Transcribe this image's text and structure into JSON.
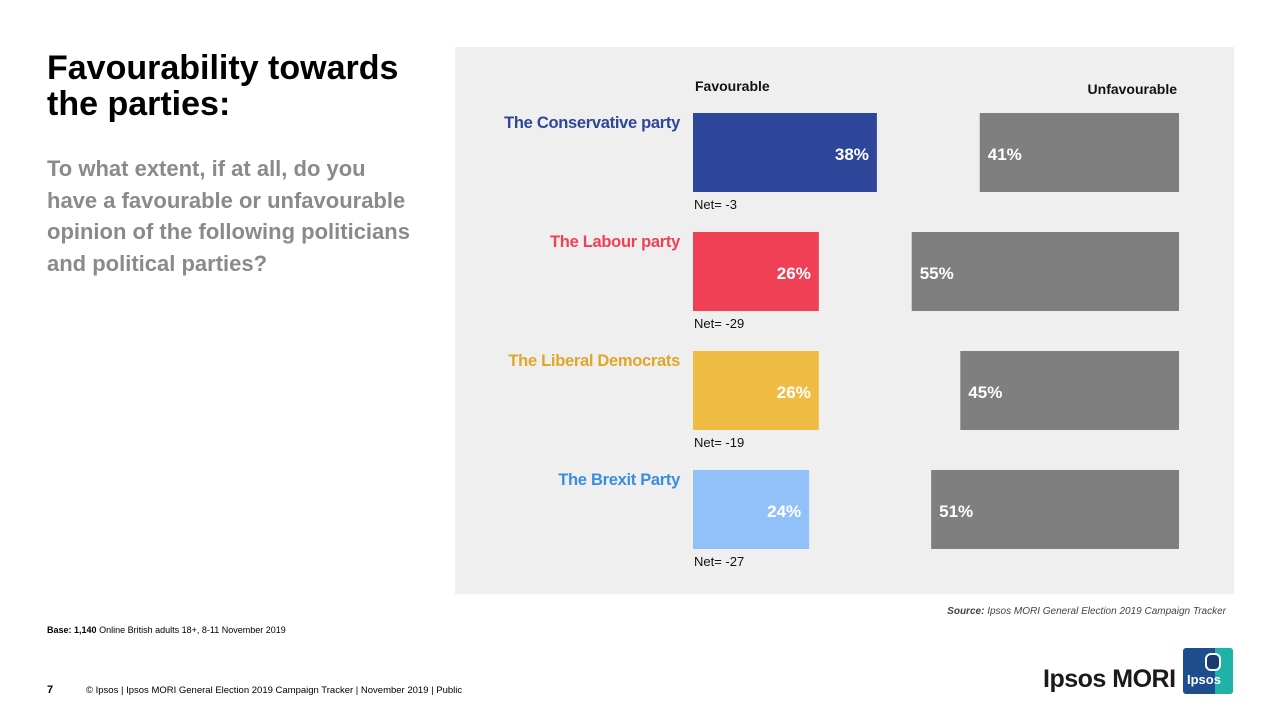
{
  "slide": {
    "title": "Favourability towards the parties:",
    "question": "To what extent, if at all, do you have a favourable or unfavourable opinion of the following politicians and political parties?",
    "base_label": "Base:",
    "base_value": "1,140",
    "base_text": "Online British adults 18+,  8-11 November 2019",
    "source_label": "Source:",
    "source_text": "Ipsos MORI General Election 2019 Campaign Tracker",
    "page_number": "7",
    "footer": "© Ipsos | Ipsos MORI  General Election 2019 Campaign  Tracker | November 2019 | Public",
    "logo_text": "Ipsos MORI",
    "badge_text": "Ipsos"
  },
  "colors": {
    "conservative": "#2e4699",
    "labour": "#ef4055",
    "libdem": "#f0bd44",
    "brexit": "#92c1fa",
    "unfavourable": "#7f7f7f",
    "panel": "#efefef"
  },
  "chart_data": {
    "type": "bar",
    "title": "Favourability towards the parties:",
    "column_headers": [
      "Favourable",
      "Unfavourable"
    ],
    "categories": [
      "The Conservative party",
      "The Labour party",
      "The Liberal Democrats",
      "The Brexit Party"
    ],
    "category_colors": [
      "#2e4699",
      "#ef4055",
      "#f0bd44",
      "#92c1fa"
    ],
    "label_colors": [
      "#2e4699",
      "#ef4055",
      "#e0a629",
      "#3a8ddf"
    ],
    "series": [
      {
        "name": "Favourable",
        "values": [
          38,
          26,
          26,
          24
        ],
        "labels": [
          "38%",
          "26%",
          "26%",
          "24%"
        ]
      },
      {
        "name": "Unfavourable",
        "values": [
          41,
          55,
          45,
          51
        ],
        "labels": [
          "41%",
          "55%",
          "45%",
          "51%"
        ]
      }
    ],
    "net_labels": [
      "Net= -3",
      "Net= -29",
      "Net= -19",
      "Net= -27"
    ],
    "value_unit": "%"
  }
}
